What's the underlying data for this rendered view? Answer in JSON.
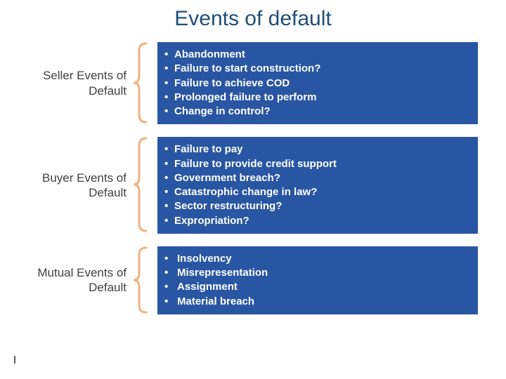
{
  "title": "Events of default",
  "colors": {
    "title_color": "#1f4e79",
    "bracket_stroke": "#f2b183",
    "box_bg": "#2956a3",
    "box_text": "#ffffff",
    "label_color": "#404040",
    "background": "#ffffff"
  },
  "sections": [
    {
      "label": "Seller Events of Default",
      "items": [
        "Abandonment",
        "Failure to start construction?",
        "Failure to achieve COD",
        "Prolonged failure to perform",
        "Change in control?"
      ]
    },
    {
      "label": "Buyer Events of Default",
      "items": [
        "Failure to pay",
        "Failure to provide credit support",
        "Government breach?",
        "Catastrophic change in law?",
        "Sector restructuring?",
        "Expropriation?"
      ]
    },
    {
      "label": "Mutual Events of Default",
      "items": [
        "Insolvency",
        "Misrepresentation",
        "Assignment",
        "Material breach"
      ]
    }
  ]
}
